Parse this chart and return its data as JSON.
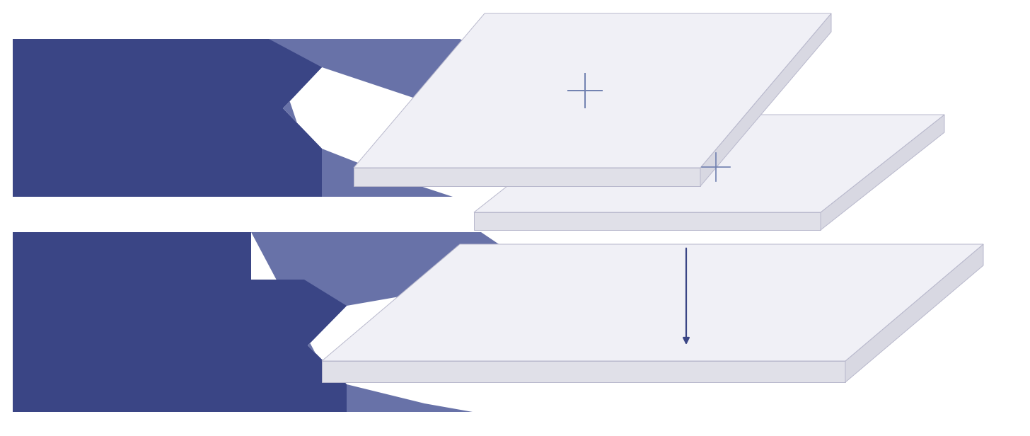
{
  "bg_color": "#ffffff",
  "arrow_dark": "#3a4585",
  "arrow_light": "#6872a8",
  "slab_top": "#f0f0f6",
  "slab_front": "#e0e0e8",
  "slab_right": "#d8d8e2",
  "slab_edge": "#b8b8cc",
  "cross_color": "#7080b0",
  "down_arrow_color": "#3a4585",
  "fig_w": 14.56,
  "fig_h": 6.16,
  "dpi": 100
}
